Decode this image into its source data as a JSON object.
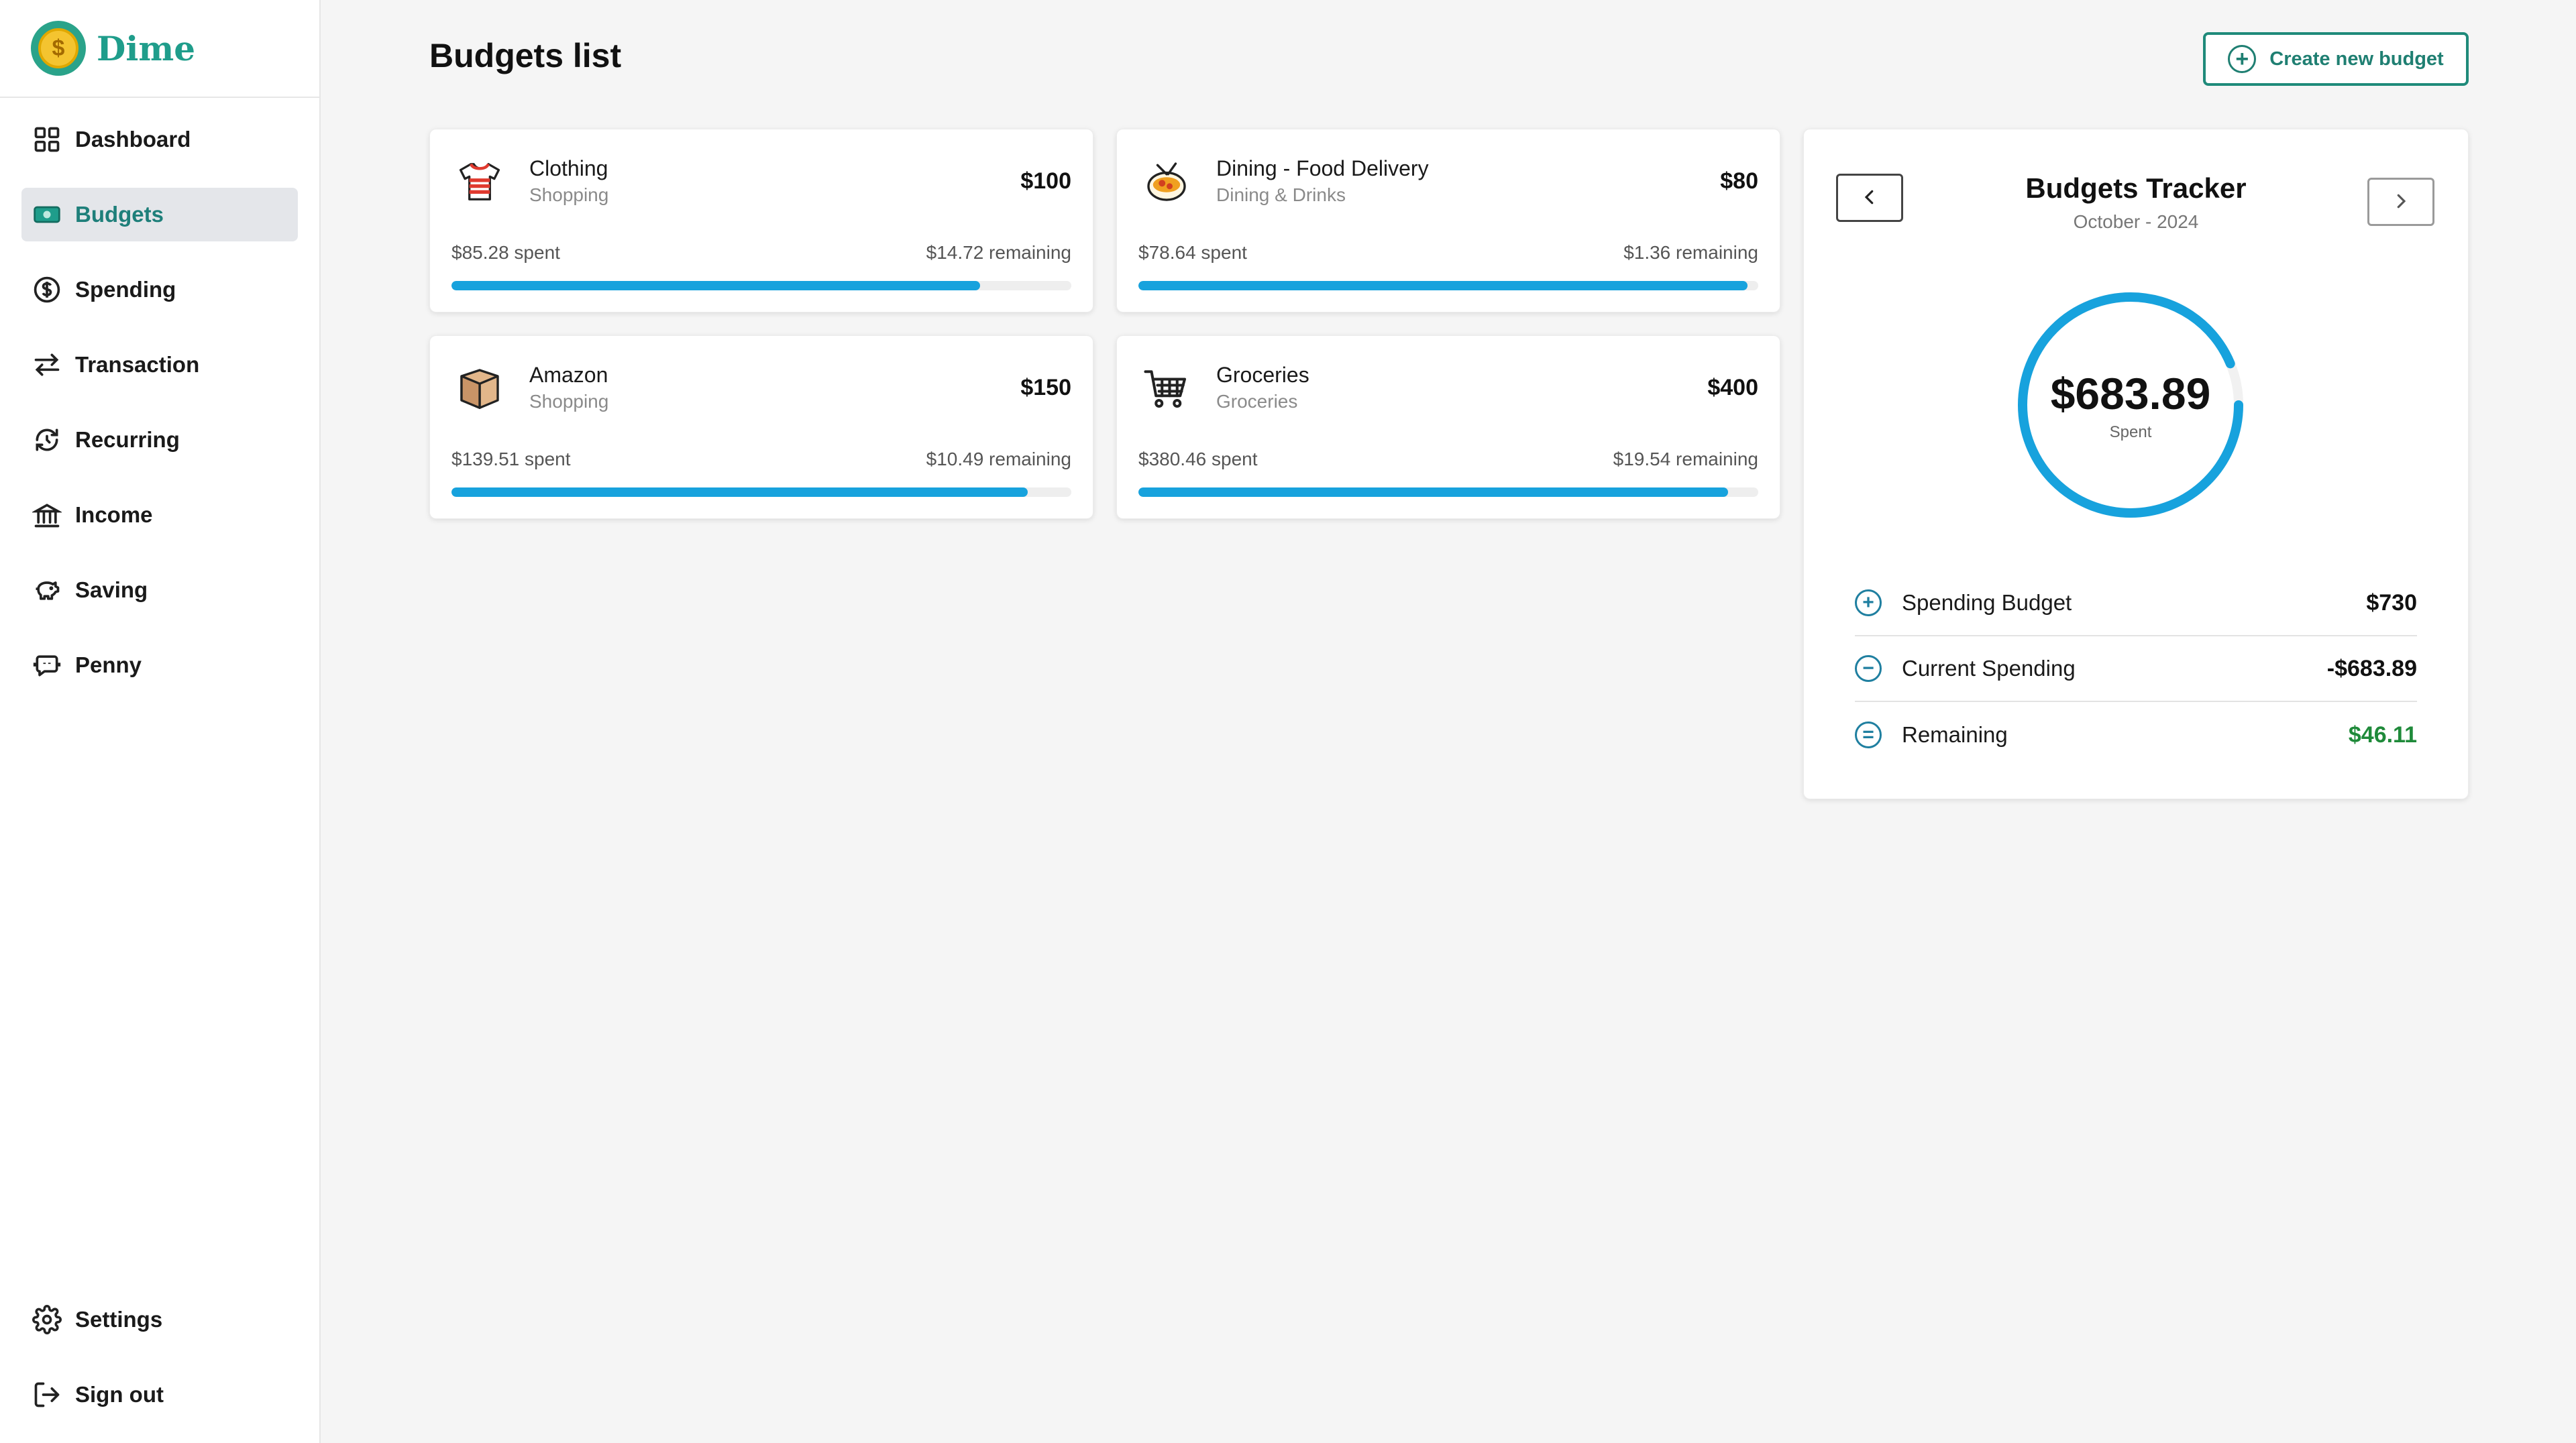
{
  "brand": {
    "name": "Dime",
    "logo_icon": "coin-icon",
    "accent": "#1f9d8b"
  },
  "sidebar": {
    "items": [
      {
        "label": "Dashboard",
        "icon": "grid-icon",
        "active": false
      },
      {
        "label": "Budgets",
        "icon": "money-icon",
        "active": true
      },
      {
        "label": "Spending",
        "icon": "dollar-circle-icon",
        "active": false
      },
      {
        "label": "Transaction",
        "icon": "swap-arrows-icon",
        "active": false
      },
      {
        "label": "Recurring",
        "icon": "refresh-icon",
        "active": false
      },
      {
        "label": "Income",
        "icon": "bank-icon",
        "active": false
      },
      {
        "label": "Saving",
        "icon": "piggy-bank-icon",
        "active": false
      },
      {
        "label": "Penny",
        "icon": "bot-icon",
        "active": false
      }
    ],
    "bottom": [
      {
        "label": "Settings",
        "icon": "gear-icon"
      },
      {
        "label": "Sign out",
        "icon": "sign-out-icon"
      }
    ]
  },
  "header": {
    "title": "Budgets list",
    "create_label": "Create new budget"
  },
  "budgets": [
    {
      "name": "Clothing",
      "category": "Shopping",
      "amount": "$100",
      "spent": "$85.28 spent",
      "remaining": "$14.72 remaining",
      "progress": 0.8528,
      "icon": "shirt-icon"
    },
    {
      "name": "Dining - Food Delivery",
      "category": "Dining & Drinks",
      "amount": "$80",
      "spent": "$78.64 spent",
      "remaining": "$1.36 remaining",
      "progress": 0.983,
      "icon": "food-bowl-icon"
    },
    {
      "name": "Amazon",
      "category": "Shopping",
      "amount": "$150",
      "spent": "$139.51 spent",
      "remaining": "$10.49 remaining",
      "progress": 0.93,
      "icon": "package-icon"
    },
    {
      "name": "Groceries",
      "category": "Groceries",
      "amount": "$400",
      "spent": "$380.46 spent",
      "remaining": "$19.54 remaining",
      "progress": 0.951,
      "icon": "cart-icon"
    }
  ],
  "tracker": {
    "title": "Budgets Tracker",
    "period": "October - 2024",
    "spent_value": "$683.89",
    "spent_label": "Spent",
    "progress": 0.937,
    "rows": [
      {
        "label": "Spending Budget",
        "value": "$730",
        "icon": "plus-circle-icon",
        "symbol": "+"
      },
      {
        "label": "Current Spending",
        "value": "-$683.89",
        "icon": "minus-circle-icon",
        "symbol": "−"
      },
      {
        "label": "Remaining",
        "value": "$46.11",
        "icon": "equals-circle-icon",
        "symbol": "="
      }
    ]
  },
  "colors": {
    "progress": "#17a2dd",
    "positive": "#1f8a3a",
    "active_nav_bg": "#e4e6ea"
  }
}
